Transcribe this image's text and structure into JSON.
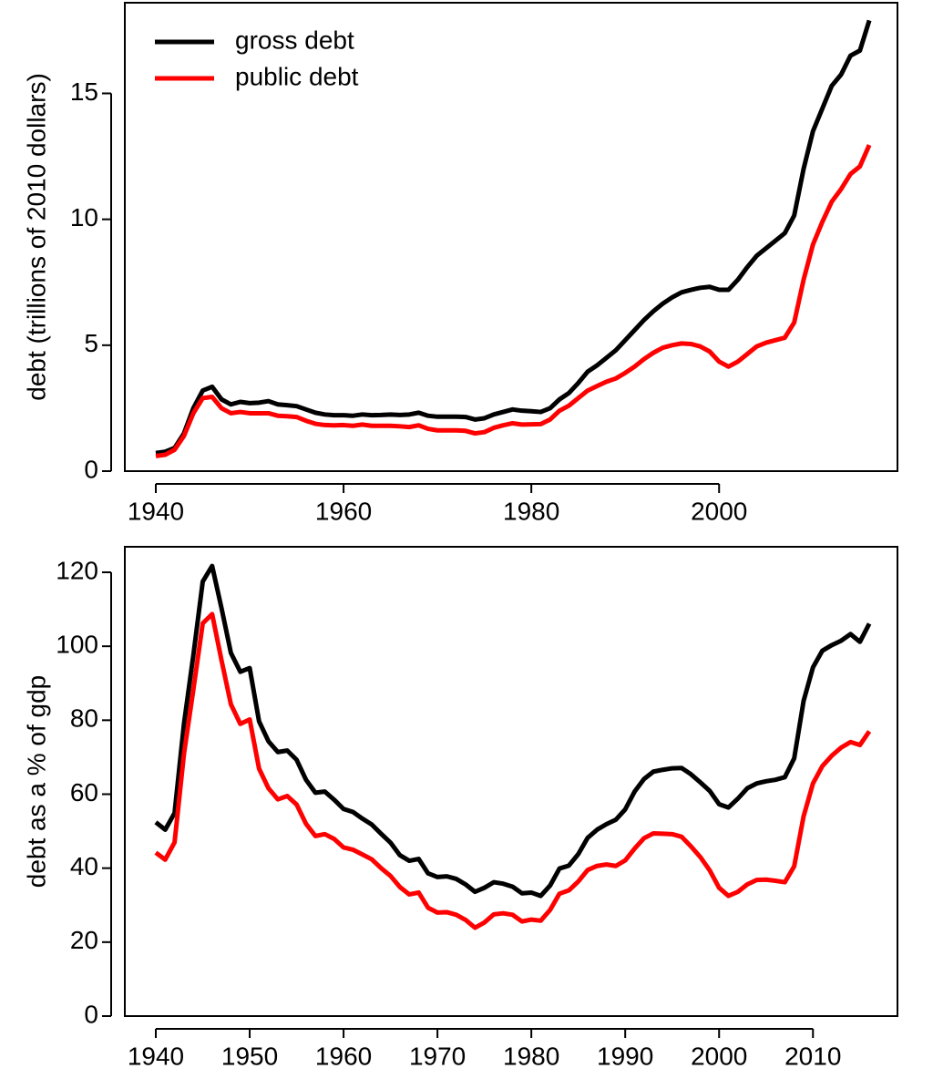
{
  "chart_data": [
    {
      "type": "line",
      "ylabel": "debt (trillions of 2010 dollars)",
      "legend": "top-left",
      "x": [
        1940,
        1941,
        1942,
        1943,
        1944,
        1945,
        1946,
        1947,
        1948,
        1949,
        1950,
        1951,
        1952,
        1953,
        1954,
        1955,
        1956,
        1957,
        1958,
        1959,
        1960,
        1961,
        1962,
        1963,
        1964,
        1965,
        1966,
        1967,
        1968,
        1969,
        1970,
        1971,
        1972,
        1973,
        1974,
        1975,
        1976,
        1977,
        1978,
        1979,
        1980,
        1981,
        1982,
        1983,
        1984,
        1985,
        1986,
        1987,
        1988,
        1989,
        1990,
        1991,
        1992,
        1993,
        1994,
        1995,
        1996,
        1997,
        1998,
        1999,
        2000,
        2001,
        2002,
        2003,
        2004,
        2005,
        2006,
        2007,
        2008,
        2009,
        2010,
        2011,
        2012,
        2013,
        2014,
        2015,
        2016
      ],
      "xlim": [
        1936.7,
        2019.0
      ],
      "xticks": [
        1940,
        1960,
        1980,
        2000
      ],
      "ylim": [
        0,
        18.6
      ],
      "yticks": [
        0,
        5,
        10,
        15
      ],
      "series": [
        {
          "name": "gross debt",
          "color": "#000000",
          "values": [
            0.72,
            0.77,
            0.92,
            1.5,
            2.5,
            3.2,
            3.35,
            2.85,
            2.65,
            2.75,
            2.7,
            2.72,
            2.78,
            2.65,
            2.62,
            2.58,
            2.45,
            2.32,
            2.25,
            2.22,
            2.22,
            2.2,
            2.25,
            2.22,
            2.23,
            2.25,
            2.23,
            2.25,
            2.32,
            2.2,
            2.16,
            2.16,
            2.16,
            2.15,
            2.05,
            2.1,
            2.25,
            2.35,
            2.45,
            2.4,
            2.38,
            2.35,
            2.5,
            2.85,
            3.1,
            3.5,
            3.95,
            4.2,
            4.5,
            4.8,
            5.2,
            5.6,
            6.0,
            6.35,
            6.65,
            6.9,
            7.1,
            7.2,
            7.28,
            7.32,
            7.2,
            7.2,
            7.6,
            8.1,
            8.55,
            8.85,
            9.15,
            9.45,
            10.15,
            12.0,
            13.5,
            14.4,
            15.3,
            15.75,
            16.5,
            16.7,
            17.9
          ]
        },
        {
          "name": "public debt",
          "color": "#ff0000",
          "values": [
            0.6,
            0.65,
            0.85,
            1.4,
            2.3,
            2.9,
            2.95,
            2.5,
            2.3,
            2.35,
            2.3,
            2.3,
            2.3,
            2.2,
            2.18,
            2.15,
            2.0,
            1.88,
            1.83,
            1.82,
            1.83,
            1.8,
            1.85,
            1.8,
            1.8,
            1.8,
            1.78,
            1.75,
            1.82,
            1.68,
            1.62,
            1.62,
            1.62,
            1.6,
            1.5,
            1.55,
            1.72,
            1.82,
            1.9,
            1.85,
            1.86,
            1.87,
            2.05,
            2.4,
            2.6,
            2.9,
            3.2,
            3.38,
            3.55,
            3.68,
            3.9,
            4.15,
            4.45,
            4.7,
            4.9,
            5.0,
            5.07,
            5.05,
            4.95,
            4.75,
            4.35,
            4.15,
            4.35,
            4.65,
            4.95,
            5.1,
            5.2,
            5.3,
            5.9,
            7.6,
            9.0,
            9.9,
            10.7,
            11.2,
            11.8,
            12.1,
            12.95
          ]
        }
      ]
    },
    {
      "type": "line",
      "ylabel": "debt as a % of gdp",
      "x": [
        1940,
        1941,
        1942,
        1943,
        1944,
        1945,
        1946,
        1947,
        1948,
        1949,
        1950,
        1951,
        1952,
        1953,
        1954,
        1955,
        1956,
        1957,
        1958,
        1959,
        1960,
        1961,
        1962,
        1963,
        1964,
        1965,
        1966,
        1967,
        1968,
        1969,
        1970,
        1971,
        1972,
        1973,
        1974,
        1975,
        1976,
        1977,
        1978,
        1979,
        1980,
        1981,
        1982,
        1983,
        1984,
        1985,
        1986,
        1987,
        1988,
        1989,
        1990,
        1991,
        1992,
        1993,
        1994,
        1995,
        1996,
        1997,
        1998,
        1999,
        2000,
        2001,
        2002,
        2003,
        2004,
        2005,
        2006,
        2007,
        2008,
        2009,
        2010,
        2011,
        2012,
        2013,
        2014,
        2015,
        2016
      ],
      "xlim": [
        1936.7,
        2019.0
      ],
      "xticks": [
        1940,
        1950,
        1960,
        1970,
        1980,
        1990,
        2000,
        2010
      ],
      "ylim": [
        0,
        126.9
      ],
      "yticks": [
        0,
        20,
        40,
        60,
        80,
        100,
        120
      ],
      "series": [
        {
          "color": "#000000",
          "values": [
            52.4,
            50.4,
            54.9,
            79,
            97.6,
            117.5,
            121.7,
            110.3,
            98.2,
            93.1,
            94.1,
            79.7,
            74.3,
            71.4,
            71.8,
            69.3,
            63.9,
            60.4,
            60.7,
            58.5,
            56,
            55.2,
            53.4,
            51.8,
            49.3,
            46.9,
            43.5,
            42,
            42.5,
            38.6,
            37.6,
            37.8,
            37.1,
            35.6,
            33.6,
            34.7,
            36.2,
            35.8,
            35,
            33.2,
            33.4,
            32.5,
            35.3,
            39.9,
            40.7,
            43.8,
            48.2,
            50.4,
            51.9,
            53.1,
            55.9,
            60.7,
            64.1,
            66.1,
            66.6,
            67,
            67.1,
            65.4,
            63.2,
            60.9,
            57.3,
            56.4,
            58.8,
            61.6,
            62.9,
            63.5,
            63.9,
            64.6,
            69.7,
            85.2,
            94.3,
            98.8,
            100.3,
            101.5,
            103.3,
            101.2,
            106.1
          ]
        },
        {
          "color": "#ff0000",
          "values": [
            44.2,
            42.3,
            47,
            70.9,
            88.3,
            106.2,
            108.7,
            96.2,
            84.3,
            79,
            80.2,
            66.9,
            61.6,
            58.6,
            59.5,
            57.2,
            52,
            48.7,
            49.2,
            47.9,
            45.6,
            45,
            43.7,
            42.4,
            40,
            37.9,
            34.9,
            32.9,
            33.4,
            29.3,
            28,
            28.1,
            27.4,
            26,
            23.9,
            25.3,
            27.5,
            27.8,
            27.4,
            25.6,
            26.1,
            25.8,
            28.7,
            33.1,
            34,
            36.4,
            39.5,
            40.6,
            41,
            40.6,
            42.1,
            45.3,
            48.1,
            49.4,
            49.3,
            49.2,
            48.5,
            45.9,
            43,
            39.4,
            34.7,
            32.5,
            33.6,
            35.6,
            36.8,
            36.9,
            36.6,
            36.2,
            40.5,
            54,
            62.9,
            67.6,
            70.4,
            72.6,
            74.1,
            73.3,
            77
          ]
        }
      ]
    }
  ]
}
